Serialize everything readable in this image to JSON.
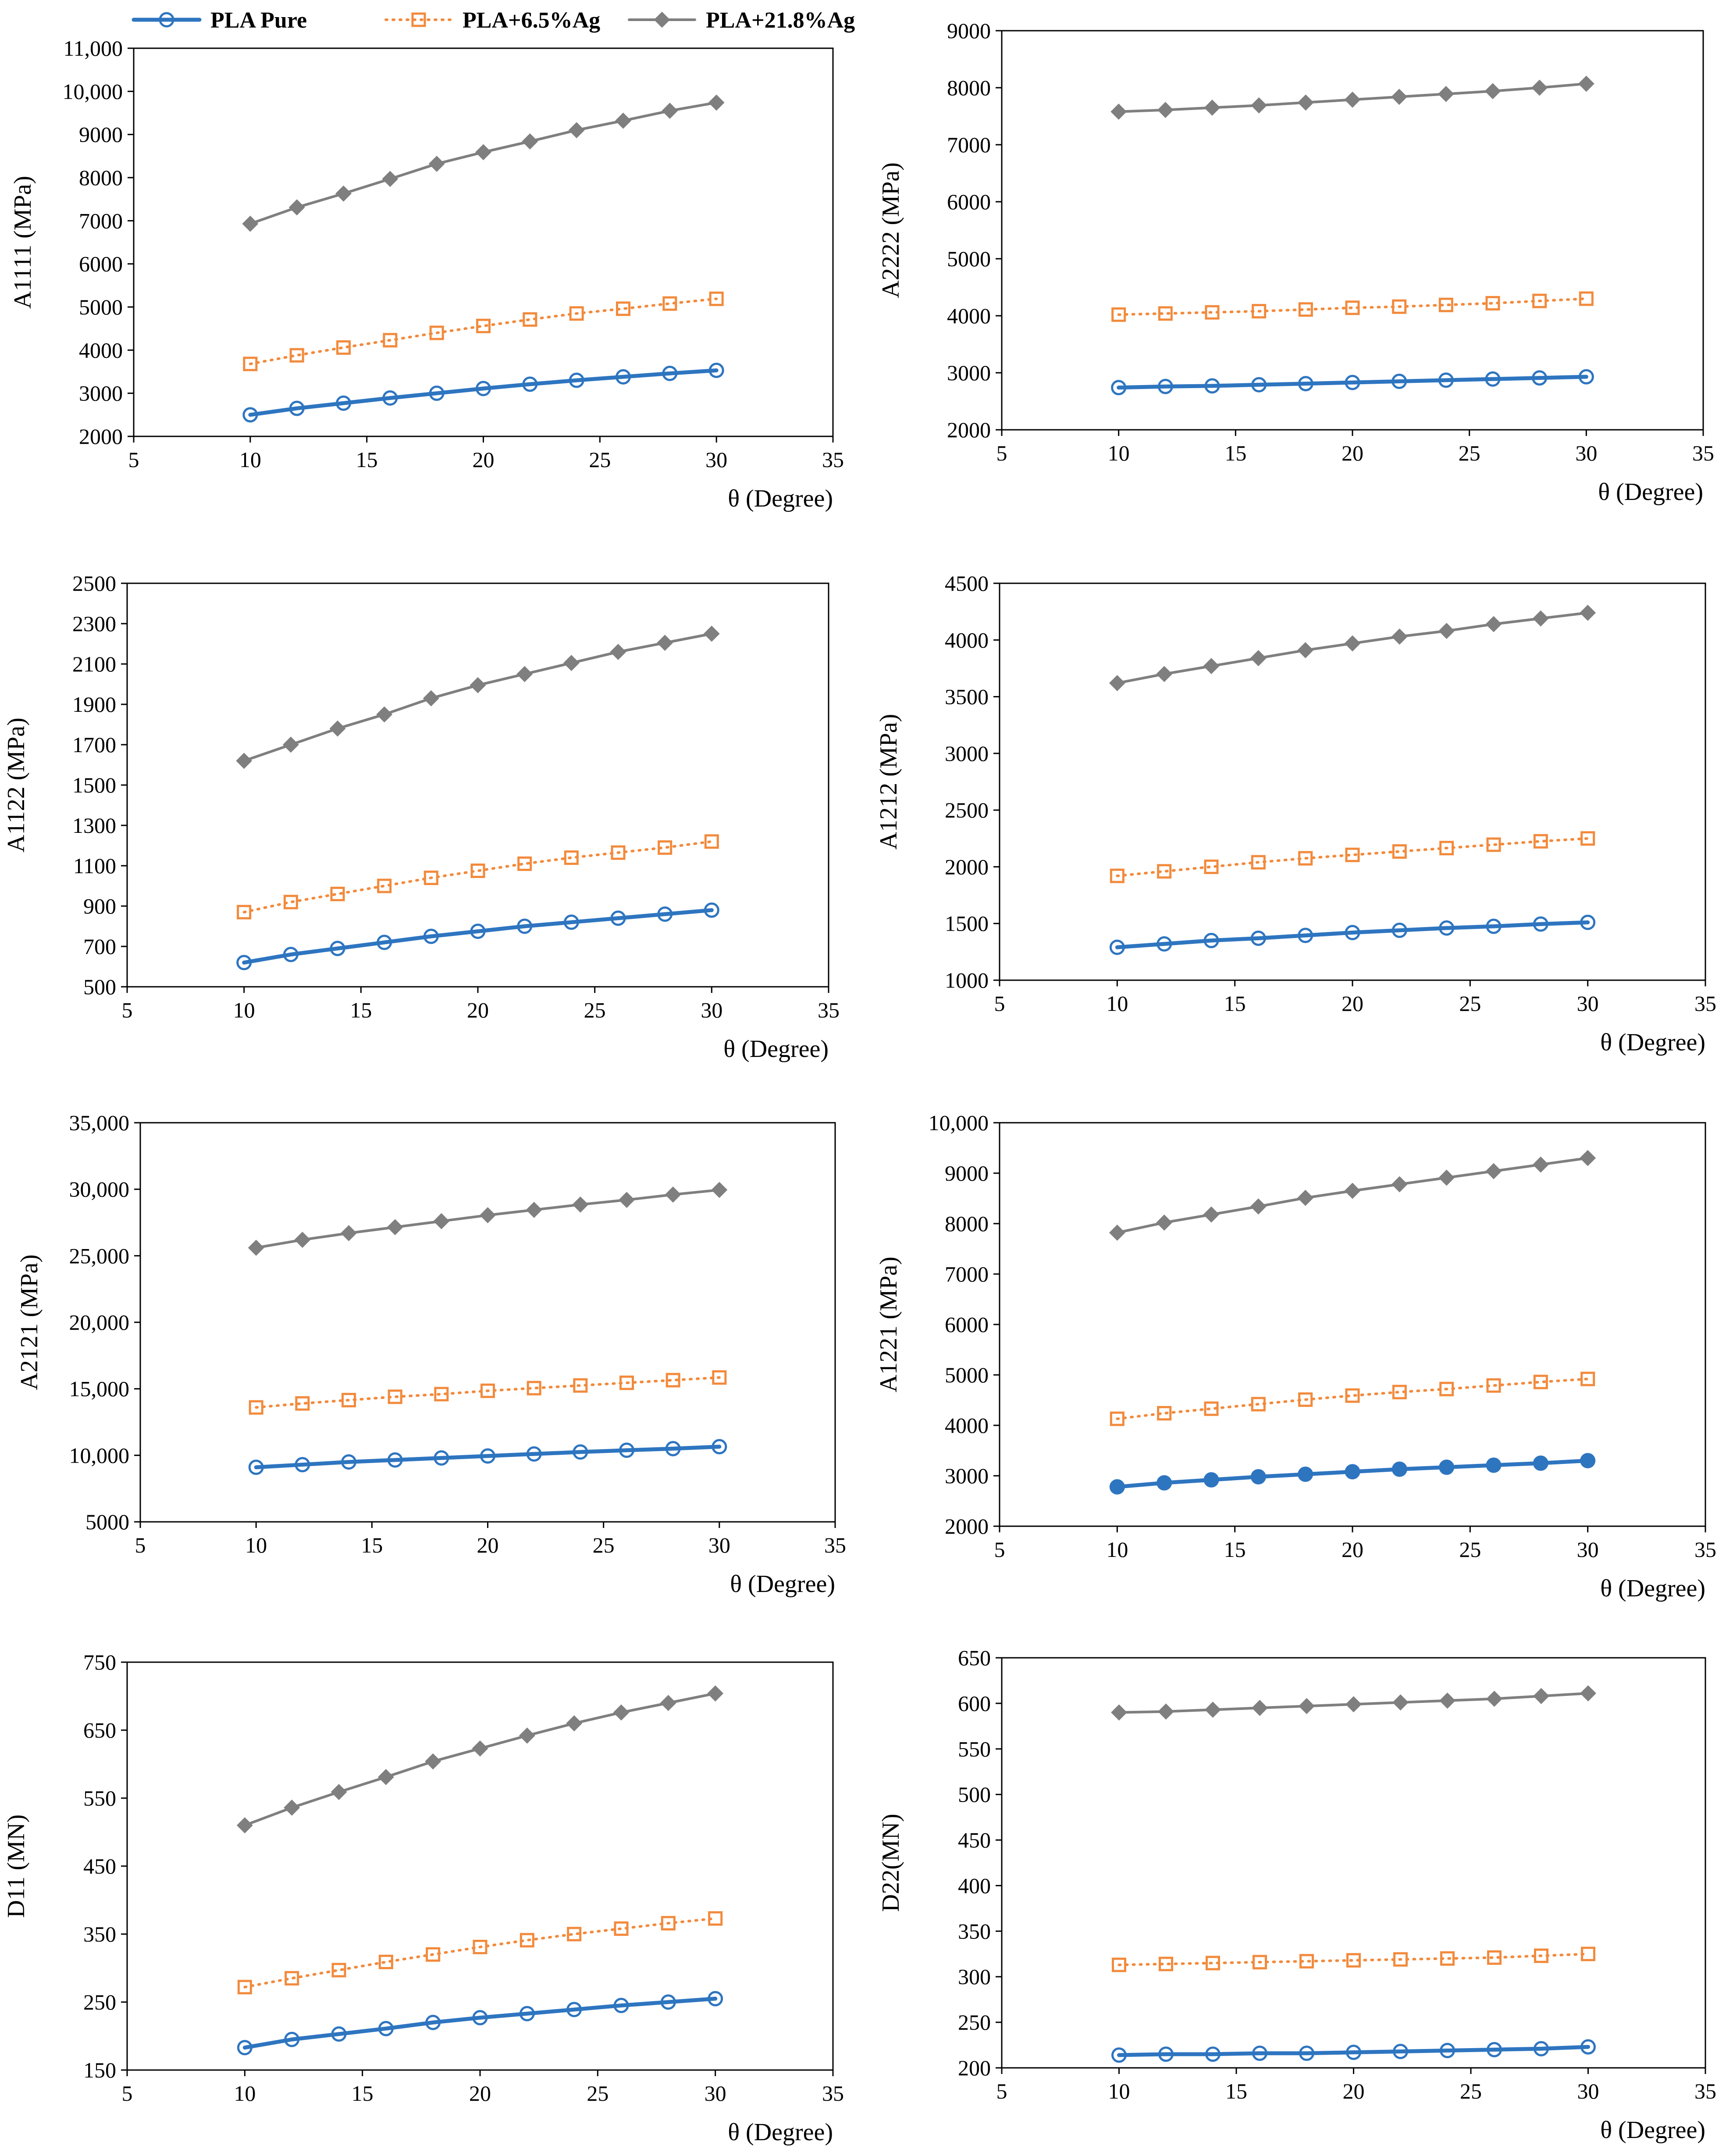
{
  "legend": {
    "entries": [
      {
        "name": "PLA Pure",
        "color": "#2e75c0",
        "line": "solid",
        "marker": "open-circle"
      },
      {
        "name": "PLA+6.5%Ag",
        "color": "#f28a3c",
        "line": "dotted",
        "marker": "open-square"
      },
      {
        "name": "PLA+21.8%Ag",
        "color": "#7f7f7f",
        "line": "solid",
        "marker": "filled-diamond"
      }
    ]
  },
  "chart_data": [
    {
      "type": "line",
      "ylabel": "A1111 (MPa)",
      "xlabel": "θ (Degree)",
      "xlim": [
        5,
        35
      ],
      "ylim": [
        2000,
        11000
      ],
      "xticks": [
        "5",
        "10",
        "15",
        "20",
        "25",
        "30",
        "35"
      ],
      "yticks": [
        "2000",
        "3000",
        "4000",
        "5000",
        "6000",
        "7000",
        "8000",
        "9000",
        "10,000",
        "11,000"
      ],
      "x": [
        10,
        12,
        14,
        16,
        18,
        20,
        22,
        24,
        26,
        28,
        30
      ],
      "series": [
        {
          "name": "PLA Pure",
          "values": [
            2500,
            2650,
            2770,
            2890,
            3000,
            3110,
            3210,
            3300,
            3380,
            3460,
            3530
          ]
        },
        {
          "name": "PLA+6.5%Ag",
          "values": [
            3680,
            3880,
            4060,
            4230,
            4400,
            4560,
            4710,
            4850,
            4960,
            5080,
            5190
          ]
        },
        {
          "name": "PLA+21.8%Ag",
          "values": [
            6930,
            7310,
            7630,
            7970,
            8320,
            8590,
            8840,
            9100,
            9320,
            9550,
            9740
          ]
        }
      ]
    },
    {
      "type": "line",
      "ylabel": "A2222 (MPa)",
      "xlabel": "θ (Degree)",
      "xlim": [
        5,
        35
      ],
      "ylim": [
        2000,
        9000
      ],
      "xticks": [
        "5",
        "10",
        "15",
        "20",
        "25",
        "30",
        "35"
      ],
      "yticks": [
        "2000",
        "3000",
        "4000",
        "5000",
        "6000",
        "7000",
        "8000",
        "9000"
      ],
      "x": [
        10,
        12,
        14,
        16,
        18,
        20,
        22,
        24,
        26,
        28,
        30
      ],
      "series": [
        {
          "name": "PLA Pure",
          "values": [
            2740,
            2760,
            2770,
            2790,
            2810,
            2830,
            2850,
            2870,
            2890,
            2910,
            2930
          ]
        },
        {
          "name": "PLA+6.5%Ag",
          "values": [
            4020,
            4040,
            4060,
            4080,
            4110,
            4140,
            4160,
            4190,
            4220,
            4260,
            4300
          ]
        },
        {
          "name": "PLA+21.8%Ag",
          "values": [
            7580,
            7610,
            7650,
            7690,
            7740,
            7790,
            7840,
            7890,
            7940,
            8000,
            8070
          ]
        }
      ]
    },
    {
      "type": "line",
      "ylabel": "A1122 (MPa)",
      "xlabel": "θ (Degree)",
      "xlim": [
        5,
        35
      ],
      "ylim": [
        500,
        2500
      ],
      "xticks": [
        "5",
        "10",
        "15",
        "20",
        "25",
        "30",
        "35"
      ],
      "yticks": [
        "500",
        "700",
        "900",
        "1100",
        "1300",
        "1500",
        "1700",
        "1900",
        "2100",
        "2300",
        "2500"
      ],
      "x": [
        10,
        12,
        14,
        16,
        18,
        20,
        22,
        24,
        26,
        28,
        30
      ],
      "series": [
        {
          "name": "PLA Pure",
          "values": [
            620,
            660,
            690,
            720,
            750,
            775,
            800,
            820,
            840,
            860,
            880
          ]
        },
        {
          "name": "PLA+6.5%Ag",
          "values": [
            870,
            920,
            960,
            1000,
            1040,
            1075,
            1110,
            1140,
            1165,
            1190,
            1220
          ]
        },
        {
          "name": "PLA+21.8%Ag",
          "values": [
            1620,
            1700,
            1780,
            1850,
            1930,
            1995,
            2050,
            2105,
            2160,
            2205,
            2250
          ]
        }
      ]
    },
    {
      "type": "line",
      "ylabel": "A1212 (MPa)",
      "xlabel": "θ (Degree)",
      "xlim": [
        5,
        35
      ],
      "ylim": [
        1000,
        4500
      ],
      "xticks": [
        "5",
        "10",
        "15",
        "20",
        "25",
        "30",
        "35"
      ],
      "yticks": [
        "1000",
        "1500",
        "2000",
        "2500",
        "3000",
        "3500",
        "4000",
        "4500"
      ],
      "x": [
        10,
        12,
        14,
        16,
        18,
        20,
        22,
        24,
        26,
        28,
        30
      ],
      "series": [
        {
          "name": "PLA Pure",
          "values": [
            1290,
            1320,
            1350,
            1370,
            1395,
            1420,
            1440,
            1460,
            1475,
            1495,
            1510
          ]
        },
        {
          "name": "PLA+6.5%Ag",
          "values": [
            1920,
            1960,
            2000,
            2040,
            2075,
            2105,
            2135,
            2165,
            2195,
            2225,
            2250
          ]
        },
        {
          "name": "PLA+21.8%Ag",
          "values": [
            3620,
            3700,
            3770,
            3840,
            3910,
            3970,
            4030,
            4080,
            4140,
            4190,
            4240
          ]
        }
      ]
    },
    {
      "type": "line",
      "ylabel": "A2121 (MPa)",
      "xlabel": "θ (Degree)",
      "xlim": [
        5,
        35
      ],
      "ylim": [
        5000,
        35000
      ],
      "xticks": [
        "5",
        "10",
        "15",
        "20",
        "25",
        "30",
        "35"
      ],
      "yticks": [
        "5000",
        "10,000",
        "15,000",
        "20,000",
        "25,000",
        "30,000",
        "35,000"
      ],
      "x": [
        10,
        12,
        14,
        16,
        18,
        20,
        22,
        24,
        26,
        28,
        30
      ],
      "series": [
        {
          "name": "PLA Pure",
          "values": [
            9100,
            9300,
            9500,
            9650,
            9800,
            9950,
            10100,
            10250,
            10380,
            10500,
            10650
          ]
        },
        {
          "name": "PLA+6.5%Ag",
          "values": [
            13600,
            13900,
            14150,
            14400,
            14600,
            14850,
            15050,
            15250,
            15450,
            15650,
            15850
          ]
        },
        {
          "name": "PLA+21.8%Ag",
          "values": [
            25600,
            26200,
            26700,
            27150,
            27600,
            28050,
            28450,
            28850,
            29200,
            29600,
            29950
          ]
        }
      ]
    },
    {
      "type": "line",
      "ylabel": "A1221 (MPa)",
      "xlabel": "θ (Degree)",
      "xlim": [
        5,
        35
      ],
      "ylim": [
        2000,
        10000
      ],
      "xticks": [
        "5",
        "10",
        "15",
        "20",
        "25",
        "30",
        "35"
      ],
      "yticks": [
        "2000",
        "3000",
        "4000",
        "5000",
        "6000",
        "7000",
        "8000",
        "9000",
        "10,000"
      ],
      "x": [
        10,
        12,
        14,
        16,
        18,
        20,
        22,
        24,
        26,
        28,
        30
      ],
      "series": [
        {
          "name": "PLA Pure",
          "values": [
            2780,
            2860,
            2920,
            2980,
            3030,
            3080,
            3130,
            3170,
            3210,
            3250,
            3300
          ]
        },
        {
          "name": "PLA+6.5%Ag",
          "values": [
            4130,
            4240,
            4330,
            4420,
            4510,
            4590,
            4660,
            4720,
            4790,
            4860,
            4920
          ]
        },
        {
          "name": "PLA+21.8%Ag",
          "values": [
            7820,
            8020,
            8180,
            8340,
            8510,
            8650,
            8780,
            8910,
            9040,
            9170,
            9300
          ]
        }
      ]
    },
    {
      "type": "line",
      "ylabel": "D11 (MN)",
      "xlabel": "θ (Degree)",
      "xlim": [
        5,
        35
      ],
      "ylim": [
        150,
        750
      ],
      "xticks": [
        "5",
        "10",
        "15",
        "20",
        "25",
        "30",
        "35"
      ],
      "yticks": [
        "150",
        "250",
        "350",
        "450",
        "550",
        "650",
        "750"
      ],
      "x": [
        10,
        12,
        14,
        16,
        18,
        20,
        22,
        24,
        26,
        28,
        30
      ],
      "series": [
        {
          "name": "PLA Pure",
          "values": [
            183,
            195,
            203,
            211,
            220,
            227,
            233,
            239,
            245,
            250,
            255
          ]
        },
        {
          "name": "PLA+6.5%Ag",
          "values": [
            272,
            285,
            297,
            309,
            320,
            331,
            341,
            350,
            358,
            366,
            373
          ]
        },
        {
          "name": "PLA+21.8%Ag",
          "values": [
            510,
            536,
            559,
            581,
            604,
            623,
            642,
            660,
            676,
            690,
            704
          ]
        }
      ]
    },
    {
      "type": "line",
      "ylabel": "D22(MN)",
      "xlabel": "θ (Degree)",
      "xlim": [
        5,
        35
      ],
      "ylim": [
        200,
        650
      ],
      "xticks": [
        "5",
        "10",
        "15",
        "20",
        "25",
        "30",
        "35"
      ],
      "yticks": [
        "200",
        "250",
        "300",
        "350",
        "400",
        "450",
        "500",
        "550",
        "600",
        "650"
      ],
      "x": [
        10,
        12,
        14,
        16,
        18,
        20,
        22,
        24,
        26,
        28,
        30
      ],
      "series": [
        {
          "name": "PLA Pure",
          "values": [
            214,
            215,
            215,
            216,
            216,
            217,
            218,
            219,
            220,
            221,
            223
          ]
        },
        {
          "name": "PLA+6.5%Ag",
          "values": [
            313,
            314,
            315,
            316,
            317,
            318,
            319,
            320,
            321,
            323,
            325
          ]
        },
        {
          "name": "PLA+21.8%Ag",
          "values": [
            590,
            591,
            593,
            595,
            597,
            599,
            601,
            603,
            605,
            608,
            611
          ]
        }
      ]
    }
  ]
}
